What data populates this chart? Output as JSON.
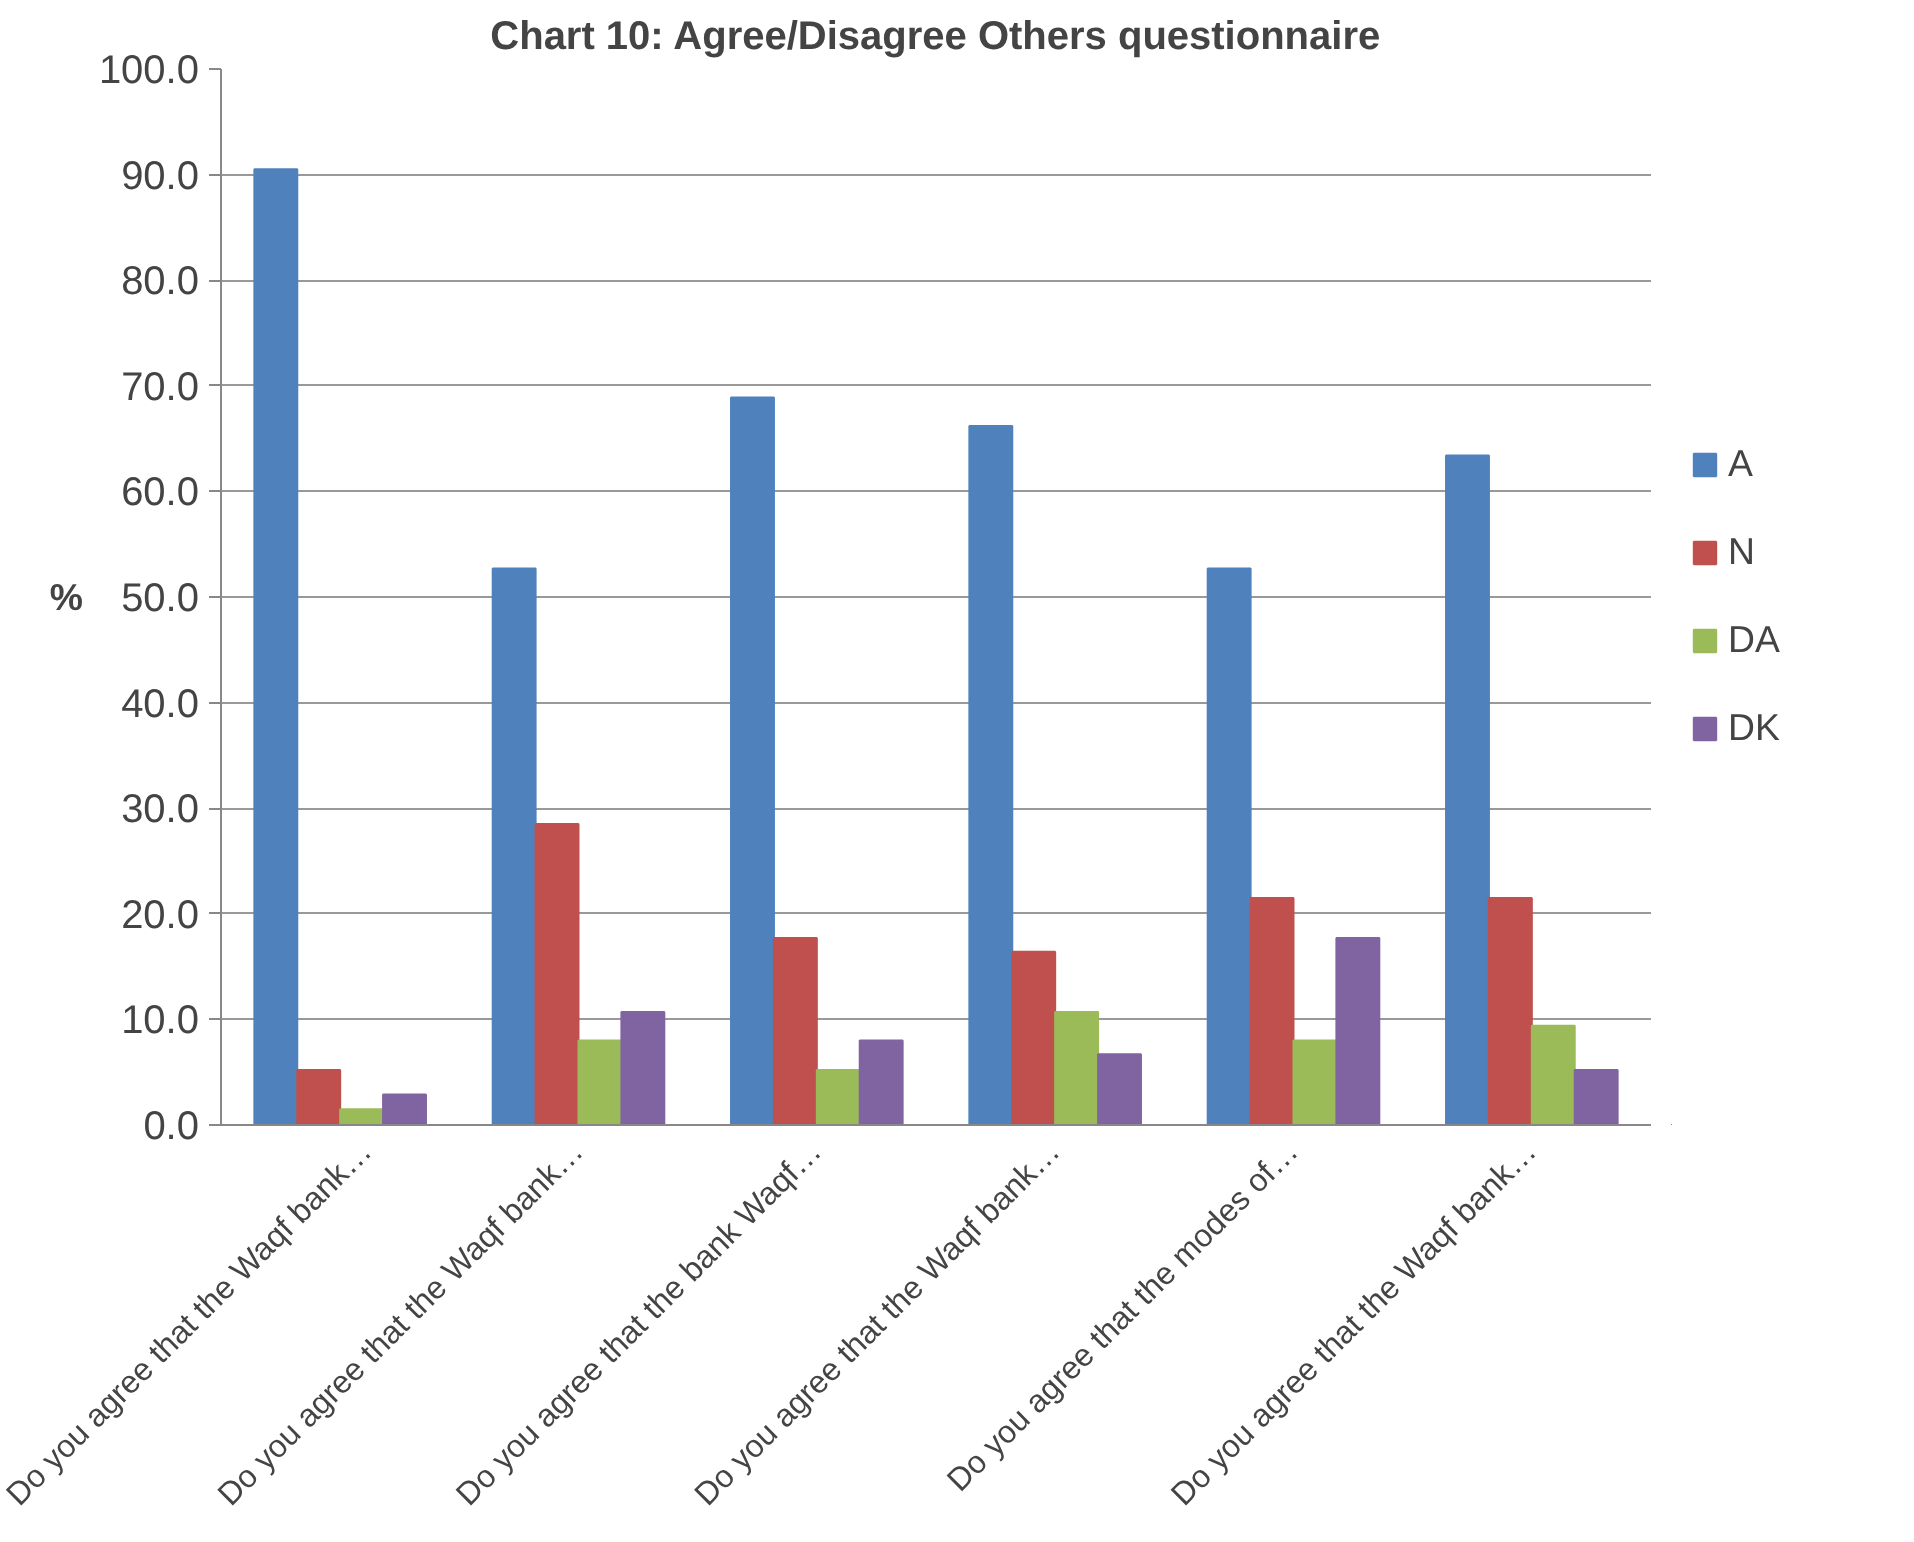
{
  "chart_data": {
    "type": "bar",
    "title": "Chart 10: Agree/Disagree Others questionnaire",
    "ylabel": "%",
    "categories": [
      "Do you agree that the Waqf bank…",
      "Do you agree that the Waqf bank…",
      "Do you agree that the bank Waqf…",
      "Do you agree that the Waqf bank…",
      "Do you agree that the modes of…",
      "Do you agree that the Waqf bank…"
    ],
    "series": [
      {
        "name": "A",
        "color": "#4f81bd",
        "values": [
          90.5,
          52.7,
          68.9,
          66.2,
          52.7,
          63.4
        ]
      },
      {
        "name": "N",
        "color": "#c0504d",
        "values": [
          5.2,
          28.5,
          17.7,
          16.4,
          21.5,
          21.5
        ]
      },
      {
        "name": "DA",
        "color": "#9bbb59",
        "values": [
          1.5,
          8.0,
          5.2,
          10.7,
          8.0,
          9.4
        ]
      },
      {
        "name": "DK",
        "color": "#8064a2",
        "values": [
          2.9,
          10.7,
          8.0,
          6.7,
          17.7,
          5.2
        ]
      }
    ],
    "ylim": [
      0,
      100
    ],
    "yticks": [
      {
        "value": 0,
        "label": "0.0"
      },
      {
        "value": 10,
        "label": "10.0"
      },
      {
        "value": 20,
        "label": "20.0"
      },
      {
        "value": 30,
        "label": "30.0"
      },
      {
        "value": 40,
        "label": "40.0"
      },
      {
        "value": 50,
        "label": "50.0"
      },
      {
        "value": 60,
        "label": "60.0"
      },
      {
        "value": 70,
        "label": "70.0"
      },
      {
        "value": 80,
        "label": "80.0"
      },
      {
        "value": 90,
        "label": "90.0"
      },
      {
        "value": 100,
        "label": "100.0"
      }
    ],
    "grid": "y",
    "legend": "right"
  }
}
